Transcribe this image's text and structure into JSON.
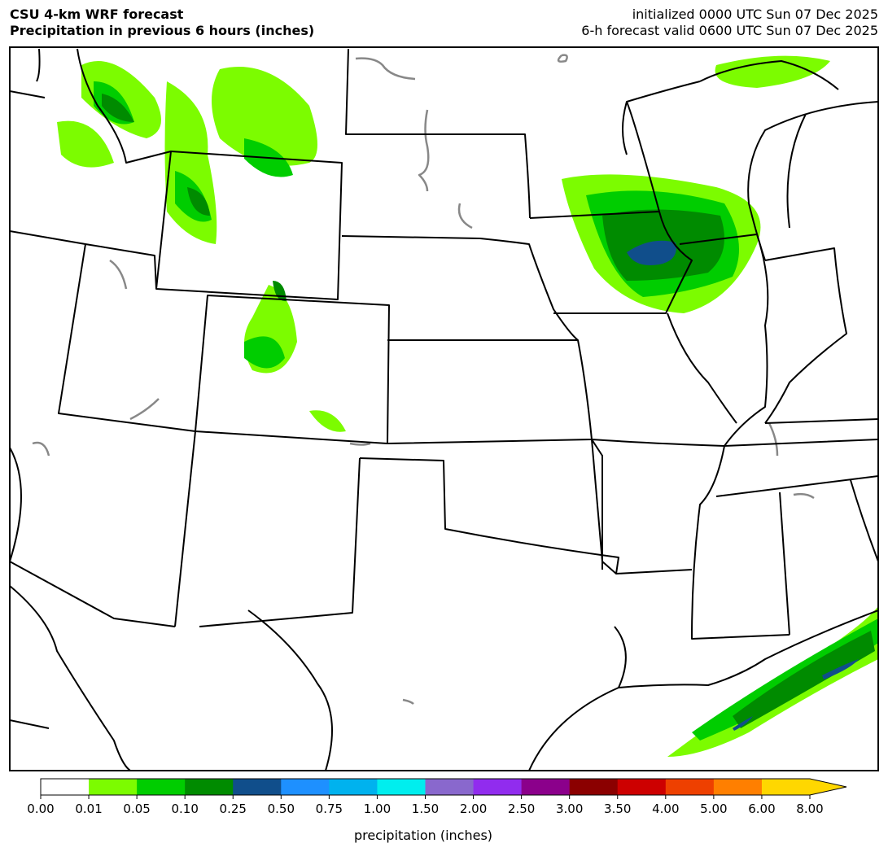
{
  "header": {
    "title_left": [
      "CSU 4-km WRF forecast",
      "Precipitation in previous 6 hours (inches)"
    ],
    "title_right": [
      "initialized 0000 UTC Sun 07 Dec 2025",
      "6-h forecast valid 0600 UTC Sun 07 Dec 2025"
    ]
  },
  "colorbar": {
    "label": "precipitation (inches)",
    "ticks": [
      "0.00",
      "0.01",
      "0.05",
      "0.10",
      "0.25",
      "0.50",
      "0.75",
      "1.00",
      "1.50",
      "2.00",
      "2.50",
      "3.00",
      "3.50",
      "4.00",
      "5.00",
      "6.00",
      "8.00"
    ],
    "colors": [
      "#ffffff",
      "#7cfc00",
      "#00cd00",
      "#008b00",
      "#104e8b",
      "#1e90ff",
      "#00b2ee",
      "#00eeee",
      "#8968cd",
      "#912cee",
      "#8b008b",
      "#8b0000",
      "#cd0000",
      "#ee4000",
      "#ff7f00",
      "#ffd700"
    ]
  }
}
